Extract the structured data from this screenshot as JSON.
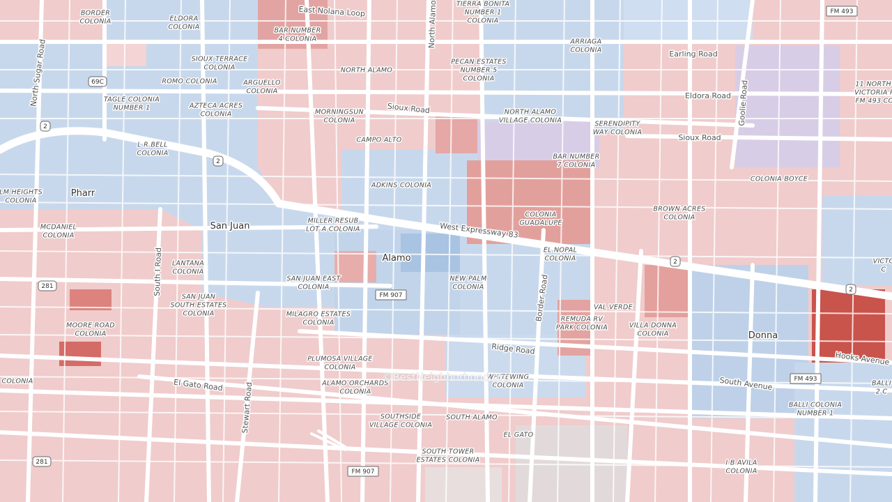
{
  "places": [
    {
      "lines": [
        "BORDER",
        "COLONIA"
      ]
    },
    {
      "lines": [
        "ELDORA",
        "COLONIA"
      ]
    },
    {
      "lines": [
        "BAR NUMBER",
        "4 COLONIA"
      ]
    },
    {
      "lines": [
        "TIERRA BONITA",
        "NUMBER 1",
        "COLONIA"
      ]
    },
    {
      "lines": [
        "ARRIAGA",
        "COLONIA"
      ]
    },
    {
      "lines": [
        "SIOUX TERRACE",
        "COLONIA"
      ]
    },
    {
      "lines": [
        "ROMO COLONIA"
      ]
    },
    {
      "lines": [
        "ARGUELLO",
        "COLONIA"
      ]
    },
    {
      "lines": [
        "NORTH ALAMO"
      ]
    },
    {
      "lines": [
        "PECAN ESTATES",
        "NUMBER 5",
        "COLONIA"
      ]
    },
    {
      "lines": [
        "TAGLE COLONIA",
        "NUMBER 1"
      ]
    },
    {
      "lines": [
        "AZTECA ACRES",
        "COLONIA"
      ]
    },
    {
      "lines": [
        "MORNINGSUN",
        "COLONIA"
      ]
    },
    {
      "lines": [
        "NORTH ALAMO",
        "VILLAGE COLONIA"
      ]
    },
    {
      "lines": [
        "SERENDIPITY",
        "WAY COLONIA"
      ]
    },
    {
      "lines": [
        "11 NORTH-",
        "VICTORIA R",
        "FM 493 CO"
      ]
    },
    {
      "lines": [
        "CAMPO ALTO"
      ]
    },
    {
      "lines": [
        "L R BELL",
        "COLONIA"
      ]
    },
    {
      "lines": [
        "BAR NUMBER",
        "7 COLONIA"
      ]
    },
    {
      "lines": [
        "COLONIA BOYCE"
      ]
    },
    {
      "lines": [
        "ADKINS COLONIA"
      ]
    },
    {
      "lines": [
        "LM HEIGHTS",
        "COLONIA"
      ]
    },
    {
      "lines": [
        "BROWN ACRES",
        "COLONIA"
      ]
    },
    {
      "lines": [
        "COLONIA",
        "GUADALUPE"
      ]
    },
    {
      "lines": [
        "MILLER RESUB",
        "LOT A COLONIA"
      ]
    },
    {
      "lines": [
        "MCDANIEL",
        "COLONIA"
      ]
    },
    {
      "lines": [
        "EL NOPAL",
        "COLONIA"
      ]
    },
    {
      "lines": [
        "LANTANA",
        "COLONIA"
      ]
    },
    {
      "lines": [
        "VICTO",
        "C"
      ]
    },
    {
      "lines": [
        "SAN JUAN EAST",
        "COLONIA"
      ]
    },
    {
      "lines": [
        "NEW PALM",
        "COLONIA"
      ]
    },
    {
      "lines": [
        "SAN JUAN",
        "SOUTH ESTATES",
        "COLONIA"
      ]
    },
    {
      "lines": [
        "VAL VERDE"
      ]
    },
    {
      "lines": [
        "REMUDA RV",
        "PARK COLONIA"
      ]
    },
    {
      "lines": [
        "MILAGRO ESTATES",
        "COLONIA"
      ]
    },
    {
      "lines": [
        "VILLA DONNA",
        "COLONIA"
      ]
    },
    {
      "lines": [
        "MOORE ROAD",
        "COLONIA"
      ]
    },
    {
      "lines": [
        "COLONIA"
      ]
    },
    {
      "lines": [
        "PLUMOSA VILLAGE",
        "COLONIA"
      ]
    },
    {
      "lines": [
        "WHITEWING",
        "COLONIA"
      ]
    },
    {
      "lines": [
        "ALAMO ORCHARDS",
        "COLONIA"
      ]
    },
    {
      "lines": [
        "BALLI",
        "2 C"
      ]
    },
    {
      "lines": [
        "BALLI COLONIA",
        "NUMBER 1"
      ]
    },
    {
      "lines": [
        "SOUTHSIDE",
        "VILLAGE COLONIA"
      ]
    },
    {
      "lines": [
        "SOUTH ALAMO"
      ]
    },
    {
      "lines": [
        "EL GATO"
      ]
    },
    {
      "lines": [
        "SOUTH TOWER",
        "ESTATES COLONIA"
      ]
    },
    {
      "lines": [
        "I B AVILA",
        "COLONIA"
      ]
    }
  ],
  "cities": [
    "Pharr",
    "San Juan",
    "Alamo",
    "Donna"
  ],
  "roads": [
    "East Nolana Loop",
    "North Alamo",
    "Earling Road",
    "Eldora Road",
    "Sioux Road",
    "Sioux Road",
    "Goolie Road",
    "North Sugar Road",
    "West Expressway 83",
    "South I Road",
    "Border Road",
    "Ridge Road",
    "Hooks Avenue",
    "South Avenue",
    "El Gato Road",
    "Stewart Road"
  ],
  "shields": [
    "FM 493",
    "69C",
    "2",
    "2",
    "2",
    "2",
    "281",
    "FM 907",
    "FM 493",
    "281",
    "FM 907"
  ],
  "watermark": "©BestNeighborhood.org"
}
